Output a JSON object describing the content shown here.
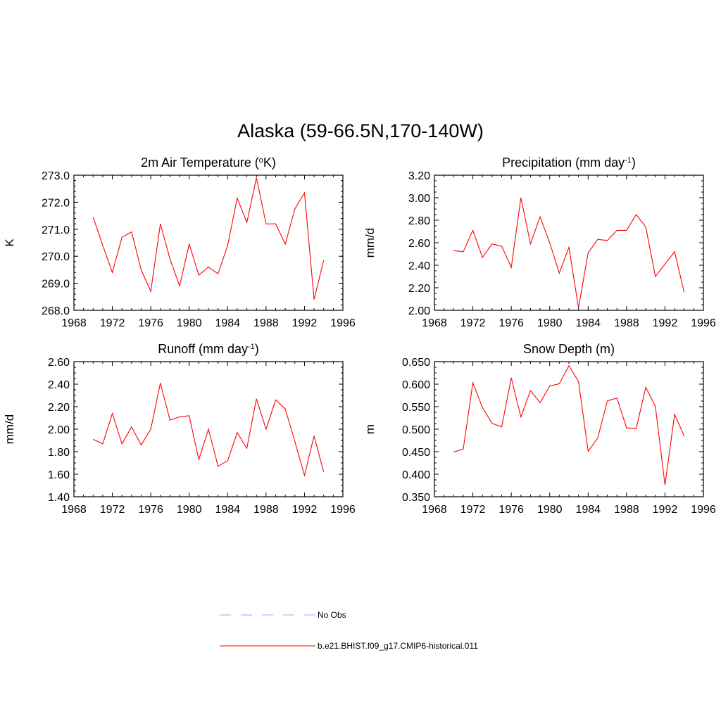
{
  "title": "Alaska (59-66.5N,170-140W)",
  "chart_data": [
    {
      "type": "line",
      "title": "2m Air Temperature (",
      "title_sup": "o",
      "title_suffix": "K)",
      "ylabel": "K",
      "xlim": [
        1968,
        1996
      ],
      "ylim": [
        268.0,
        273.0
      ],
      "xticks": [
        1968,
        1972,
        1976,
        1980,
        1984,
        1988,
        1992,
        1996
      ],
      "yticks": [
        "268.0",
        "269.0",
        "270.0",
        "271.0",
        "272.0",
        "273.0"
      ],
      "ytick_values": [
        268,
        269,
        270,
        271,
        272,
        273
      ],
      "y_minor_step": 0.2,
      "series": [
        {
          "name": "b.e21.BHIST.f09_g17.CMIP6-historical.011",
          "color": "#ff0000",
          "x": [
            1970,
            1971,
            1972,
            1973,
            1974,
            1975,
            1976,
            1977,
            1978,
            1979,
            1980,
            1981,
            1982,
            1983,
            1984,
            1985,
            1986,
            1987,
            1988,
            1989,
            1990,
            1991,
            1992,
            1993,
            1994
          ],
          "y": [
            271.45,
            270.4,
            269.4,
            270.7,
            270.9,
            269.5,
            268.7,
            271.2,
            269.9,
            268.9,
            270.45,
            269.3,
            269.6,
            269.35,
            270.4,
            272.15,
            271.25,
            272.9,
            271.2,
            271.2,
            270.45,
            271.75,
            272.35,
            268.4,
            269.85
          ]
        }
      ]
    },
    {
      "type": "line",
      "title": "Precipitation (mm day",
      "title_sup": "-1",
      "title_suffix": ")",
      "ylabel": "mm/d",
      "xlim": [
        1968,
        1996
      ],
      "ylim": [
        2.0,
        3.2
      ],
      "xticks": [
        1968,
        1972,
        1976,
        1980,
        1984,
        1988,
        1992,
        1996
      ],
      "yticks": [
        "2.00",
        "2.20",
        "2.40",
        "2.60",
        "2.80",
        "3.00",
        "3.20"
      ],
      "ytick_values": [
        2.0,
        2.2,
        2.4,
        2.6,
        2.8,
        3.0,
        3.2
      ],
      "y_minor_step": 0.05,
      "series": [
        {
          "name": "b.e21.BHIST.f09_g17.CMIP6-historical.011",
          "color": "#ff0000",
          "x": [
            1970,
            1971,
            1972,
            1973,
            1974,
            1975,
            1976,
            1977,
            1978,
            1979,
            1980,
            1981,
            1982,
            1983,
            1984,
            1985,
            1986,
            1987,
            1988,
            1989,
            1990,
            1991,
            1992,
            1993,
            1994
          ],
          "y": [
            2.53,
            2.52,
            2.71,
            2.47,
            2.59,
            2.57,
            2.38,
            3.0,
            2.59,
            2.83,
            2.6,
            2.33,
            2.56,
            2.02,
            2.51,
            2.63,
            2.62,
            2.71,
            2.71,
            2.85,
            2.74,
            2.3,
            2.41,
            2.52,
            2.16
          ]
        }
      ]
    },
    {
      "type": "line",
      "title": "Runoff (mm day",
      "title_sup": "-1",
      "title_suffix": ")",
      "ylabel": "mm/d",
      "xlim": [
        1968,
        1996
      ],
      "ylim": [
        1.4,
        2.6
      ],
      "xticks": [
        1968,
        1972,
        1976,
        1980,
        1984,
        1988,
        1992,
        1996
      ],
      "yticks": [
        "1.40",
        "1.60",
        "1.80",
        "2.00",
        "2.20",
        "2.40",
        "2.60"
      ],
      "ytick_values": [
        1.4,
        1.6,
        1.8,
        2.0,
        2.2,
        2.4,
        2.6
      ],
      "y_minor_step": 0.05,
      "series": [
        {
          "name": "b.e21.BHIST.f09_g17.CMIP6-historical.011",
          "color": "#ff0000",
          "x": [
            1970,
            1971,
            1972,
            1973,
            1974,
            1975,
            1976,
            1977,
            1978,
            1979,
            1980,
            1981,
            1982,
            1983,
            1984,
            1985,
            1986,
            1987,
            1988,
            1989,
            1990,
            1991,
            1992,
            1993,
            1994
          ],
          "y": [
            1.91,
            1.87,
            2.14,
            1.87,
            2.02,
            1.86,
            2.0,
            2.41,
            2.08,
            2.11,
            2.12,
            1.73,
            2.0,
            1.67,
            1.72,
            1.97,
            1.83,
            2.27,
            2.0,
            2.26,
            2.18,
            1.89,
            1.59,
            1.94,
            1.62
          ]
        }
      ]
    },
    {
      "type": "line",
      "title": "Snow Depth (m)",
      "title_sup": "",
      "title_suffix": "",
      "ylabel": "m",
      "xlim": [
        1968,
        1996
      ],
      "ylim": [
        0.35,
        0.65
      ],
      "xticks": [
        1968,
        1972,
        1976,
        1980,
        1984,
        1988,
        1992,
        1996
      ],
      "yticks": [
        "0.350",
        "0.400",
        "0.450",
        "0.500",
        "0.550",
        "0.600",
        "0.650"
      ],
      "ytick_values": [
        0.35,
        0.4,
        0.45,
        0.5,
        0.55,
        0.6,
        0.65
      ],
      "y_minor_step": 0.0125,
      "series": [
        {
          "name": "b.e21.BHIST.f09_g17.CMIP6-historical.011",
          "color": "#ff0000",
          "x": [
            1970,
            1971,
            1972,
            1973,
            1974,
            1975,
            1976,
            1977,
            1978,
            1979,
            1980,
            1981,
            1982,
            1983,
            1984,
            1985,
            1986,
            1987,
            1988,
            1989,
            1990,
            1991,
            1992,
            1993,
            1994
          ],
          "y": [
            0.449,
            0.456,
            0.603,
            0.548,
            0.513,
            0.505,
            0.614,
            0.527,
            0.586,
            0.559,
            0.596,
            0.601,
            0.641,
            0.606,
            0.451,
            0.48,
            0.563,
            0.569,
            0.503,
            0.501,
            0.593,
            0.551,
            0.376,
            0.533,
            0.485
          ]
        }
      ]
    }
  ],
  "legend": [
    {
      "label": "No Obs",
      "color": "#a6a6ff",
      "dash": true
    },
    {
      "label": "b.e21.BHIST.f09_g17.CMIP6-historical.011",
      "color": "#ff0000",
      "dash": false
    }
  ]
}
